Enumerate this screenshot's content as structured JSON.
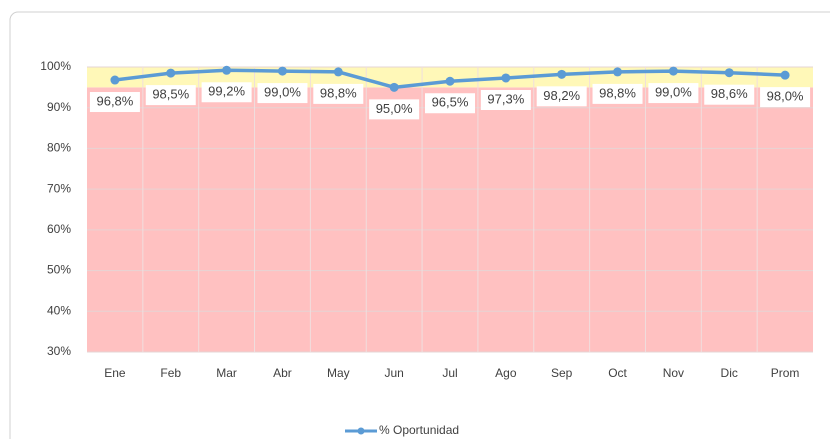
{
  "chart_data": {
    "type": "line",
    "categories": [
      "Ene",
      "Feb",
      "Mar",
      "Abr",
      "May",
      "Jun",
      "Jul",
      "Ago",
      "Sep",
      "Oct",
      "Nov",
      "Dic",
      "Prom"
    ],
    "series": [
      {
        "name": "% Oportunidad",
        "color": "#5b9bd5",
        "values": [
          96.8,
          98.5,
          99.2,
          99.0,
          98.8,
          95.0,
          96.5,
          97.3,
          98.2,
          98.8,
          99.0,
          98.6,
          98.0
        ],
        "value_labels": [
          "96,8%",
          "98,5%",
          "99,2%",
          "99,0%",
          "98,8%",
          "95,0%",
          "96,5%",
          "97,3%",
          "98,2%",
          "98,8%",
          "99,0%",
          "98,6%",
          "98,0%"
        ]
      }
    ],
    "ylim": [
      30,
      100
    ],
    "yticks": [
      {
        "value": 30,
        "label": "30%"
      },
      {
        "value": 40,
        "label": "40%"
      },
      {
        "value": 50,
        "label": "50%"
      },
      {
        "value": 60,
        "label": "60%"
      },
      {
        "value": 70,
        "label": "70%"
      },
      {
        "value": 80,
        "label": "80%"
      },
      {
        "value": 90,
        "label": "90%"
      },
      {
        "value": 100,
        "label": "100%"
      }
    ],
    "bands": [
      {
        "from": 30,
        "to": 95,
        "color": "#ffc1c1"
      },
      {
        "from": 95,
        "to": 100,
        "color": "#fff8b8"
      }
    ],
    "grid": true,
    "legend": "bottom"
  }
}
